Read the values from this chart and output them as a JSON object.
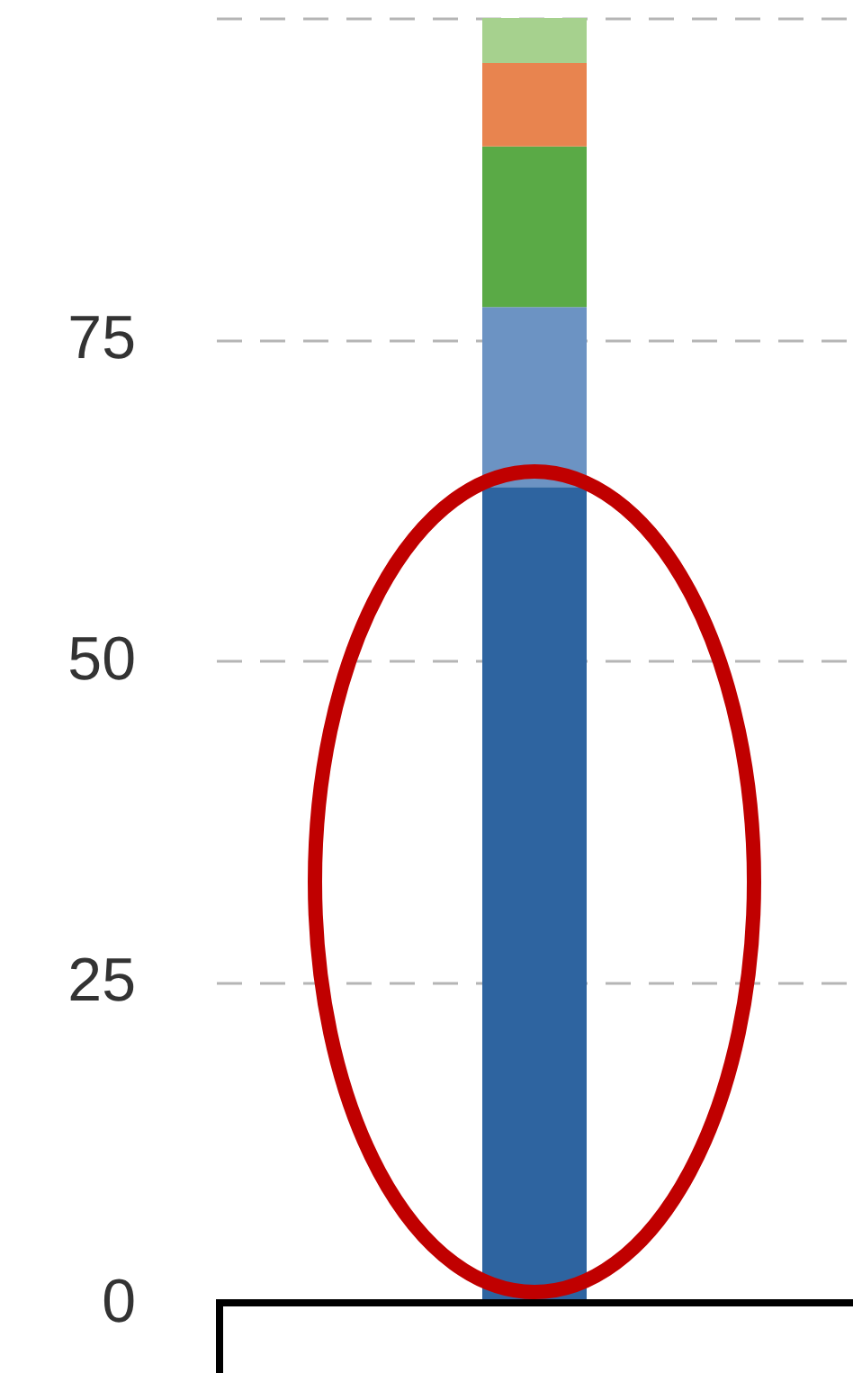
{
  "chart_data": {
    "type": "bar",
    "categories": [
      null
    ],
    "stacked": true,
    "series": [
      {
        "color": "#2e64a0",
        "values": [
          63.5
        ]
      },
      {
        "color": "#6c93c3",
        "values": [
          14
        ]
      },
      {
        "color": "#5aaa46",
        "values": [
          12.5
        ]
      },
      {
        "color": "#e8844f",
        "values": [
          6.5
        ]
      },
      {
        "color": "#a6d18e",
        "values": [
          3.5
        ]
      }
    ],
    "ylim": [
      0,
      100
    ],
    "yticks": [
      0,
      25,
      50,
      75,
      {
        "value": 100,
        "label": null
      }
    ],
    "grid": "y"
  }
}
